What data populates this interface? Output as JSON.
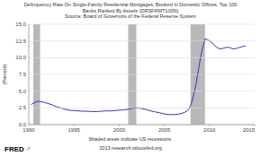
{
  "chart_data": {
    "type": "line",
    "title": [
      "Delinquency Rate On Single-Family Residential Mortgages, Booked In Domestic Offices, Top 100",
      "Banks Ranked By Assets (DRSFRMТ100N)"
    ],
    "annotations": [
      "Source: Board of Governors of the Federal Reserve System",
      "Shaded areas indicate US recessions.",
      "2013 research.stlouisfed.org",
      "FRED",
      "↗"
    ],
    "y_label": "(Percent)",
    "color": "#3333bb",
    "recessions": {
      "color": "#b8b8b8",
      "spans": [
        [
          1990.5,
          1991.25
        ],
        [
          2001.0,
          2001.9
        ],
        [
          2007.9,
          2009.5
        ]
      ]
    },
    "x": [
      1990.25,
      1990.5,
      1991.0,
      1991.5,
      1992.0,
      1992.5,
      1993.0,
      1993.5,
      1994.0,
      1994.5,
      1995.0,
      1995.5,
      1996.0,
      1996.5,
      1997.0,
      1997.5,
      1998.0,
      1998.5,
      1999.0,
      1999.5,
      2000.0,
      2000.5,
      2001.0,
      2001.5,
      2002.0,
      2002.5,
      2003.0,
      2003.5,
      2004.0,
      2004.5,
      2005.0,
      2005.5,
      2006.0,
      2006.5,
      2007.0,
      2007.25,
      2007.5,
      2007.75,
      2008.0,
      2008.25,
      2008.5,
      2008.75,
      2009.0,
      2009.25,
      2009.5,
      2009.75,
      2010.0,
      2010.25,
      2010.5,
      2010.75,
      2011.0,
      2011.25,
      2011.5,
      2011.75,
      2012.0,
      2012.25,
      2012.5,
      2012.75,
      2013.0,
      2013.25,
      2013.5,
      2013.75,
      2014.0
    ],
    "values": [
      3.0,
      3.2,
      3.5,
      3.4,
      3.2,
      3.0,
      2.7,
      2.5,
      2.3,
      2.15,
      2.1,
      2.05,
      2.0,
      2.0,
      1.95,
      1.95,
      2.0,
      2.05,
      2.05,
      2.1,
      2.15,
      2.2,
      2.3,
      2.45,
      2.5,
      2.4,
      2.25,
      2.05,
      1.9,
      1.75,
      1.6,
      1.5,
      1.5,
      1.55,
      1.7,
      1.85,
      2.0,
      2.4,
      3.2,
      4.5,
      6.0,
      8.0,
      10.0,
      11.5,
      12.8,
      12.7,
      12.5,
      12.3,
      11.9,
      11.6,
      11.4,
      11.3,
      11.4,
      11.5,
      11.55,
      11.5,
      11.35,
      11.3,
      11.4,
      11.5,
      11.6,
      11.7,
      11.75
    ],
    "xlim": [
      1990,
      2015
    ],
    "xticks": [
      1990,
      1995,
      2000,
      2005,
      2010,
      2015
    ],
    "ylim": [
      0.0,
      15.0
    ],
    "yticks": [
      {
        "value": 0.0,
        "label": "0.0"
      },
      2.5,
      {
        "value": 5.0,
        "label": "5.0"
      },
      7.5,
      {
        "value": 10.0,
        "label": "10.0"
      },
      12.5,
      {
        "value": 15.0,
        "label": "15.0"
      }
    ],
    "grid": true
  }
}
